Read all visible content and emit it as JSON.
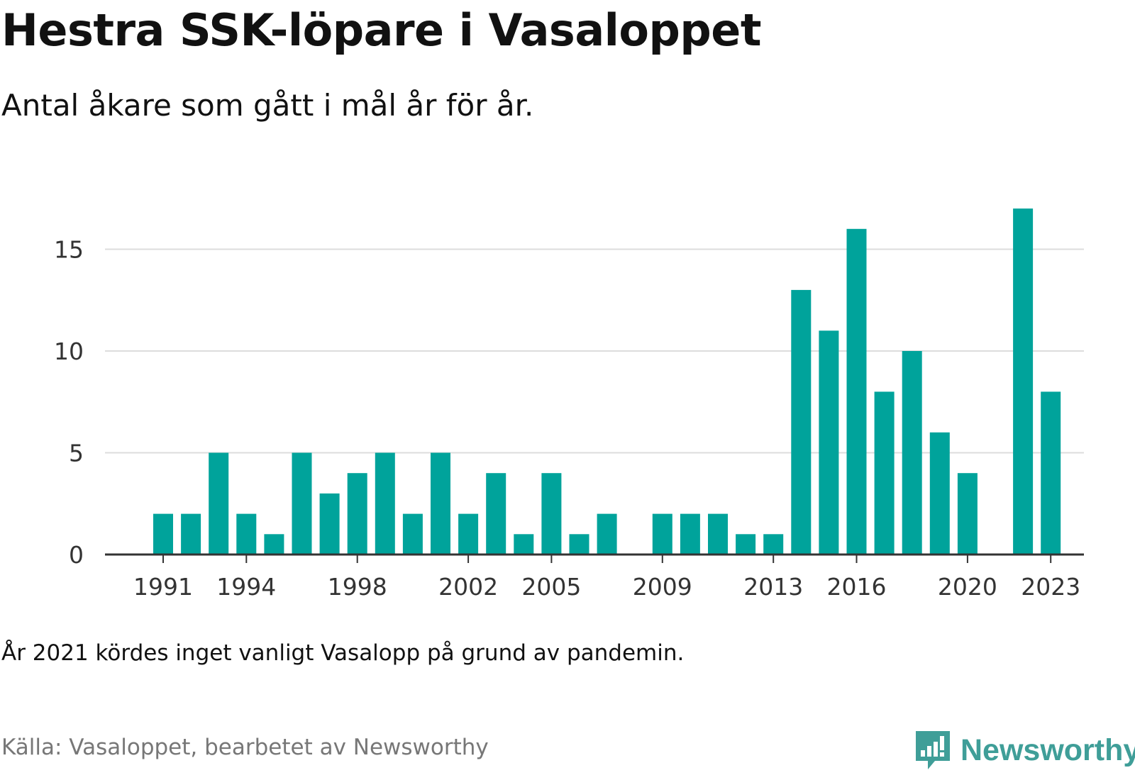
{
  "header": {
    "title": "Hestra SSK-löpare i Vasaloppet",
    "subtitle": "Antal åkare som gått i mål år för år."
  },
  "footer": {
    "note": "År 2021 kördes inget vanligt Vasalopp på grund av pandemin.",
    "source": "Källa: Vasaloppet, bearbetet av Newsworthy",
    "brand": "Newsworthy",
    "brand_icon": "newsworthy-logo-icon"
  },
  "colors": {
    "bar": "#00a39b",
    "grid": "#dddddd",
    "axis": "#333333",
    "brand": "#3f9e98"
  },
  "chart_data": {
    "type": "bar",
    "title": "Hestra SSK-löpare i Vasaloppet",
    "subtitle": "Antal åkare som gått i mål år för år.",
    "xlabel": "",
    "ylabel": "",
    "categories": [
      1991,
      1992,
      1993,
      1994,
      1995,
      1996,
      1997,
      1998,
      1999,
      2000,
      2001,
      2002,
      2003,
      2004,
      2005,
      2006,
      2007,
      2008,
      2009,
      2010,
      2011,
      2012,
      2013,
      2014,
      2015,
      2016,
      2017,
      2018,
      2019,
      2020,
      2021,
      2022,
      2023
    ],
    "values": [
      2,
      2,
      5,
      2,
      1,
      5,
      3,
      4,
      5,
      2,
      5,
      2,
      4,
      1,
      4,
      1,
      2,
      0,
      2,
      2,
      2,
      1,
      1,
      13,
      11,
      16,
      8,
      10,
      6,
      4,
      0,
      17,
      8
    ],
    "x_tick_labels": [
      1991,
      1994,
      1998,
      2002,
      2005,
      2009,
      2013,
      2016,
      2020,
      2023
    ],
    "y_ticks": [
      0,
      5,
      10,
      15
    ],
    "ylim": [
      0,
      17
    ],
    "grid": true,
    "legend": "none"
  }
}
